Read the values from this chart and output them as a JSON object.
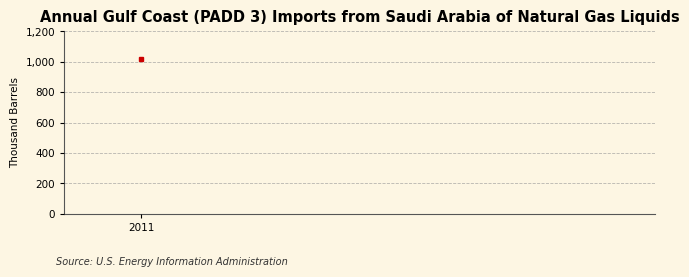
{
  "title": "Annual Gulf Coast (PADD 3) Imports from Saudi Arabia of Natural Gas Liquids",
  "ylabel": "Thousand Barrels",
  "source": "Source: U.S. Energy Information Administration",
  "x_data": [
    2011
  ],
  "y_data": [
    1020
  ],
  "point_color": "#cc0000",
  "point_marker": "s",
  "point_size": 3.5,
  "background_color": "#fdf6e3",
  "grid_color": "#999999",
  "ylim": [
    0,
    1200
  ],
  "yticks": [
    0,
    200,
    400,
    600,
    800,
    1000,
    1200
  ],
  "xlim": [
    2010.7,
    2013.0
  ],
  "title_fontsize": 10.5,
  "label_fontsize": 7.5,
  "tick_fontsize": 7.5,
  "source_fontsize": 7.0
}
